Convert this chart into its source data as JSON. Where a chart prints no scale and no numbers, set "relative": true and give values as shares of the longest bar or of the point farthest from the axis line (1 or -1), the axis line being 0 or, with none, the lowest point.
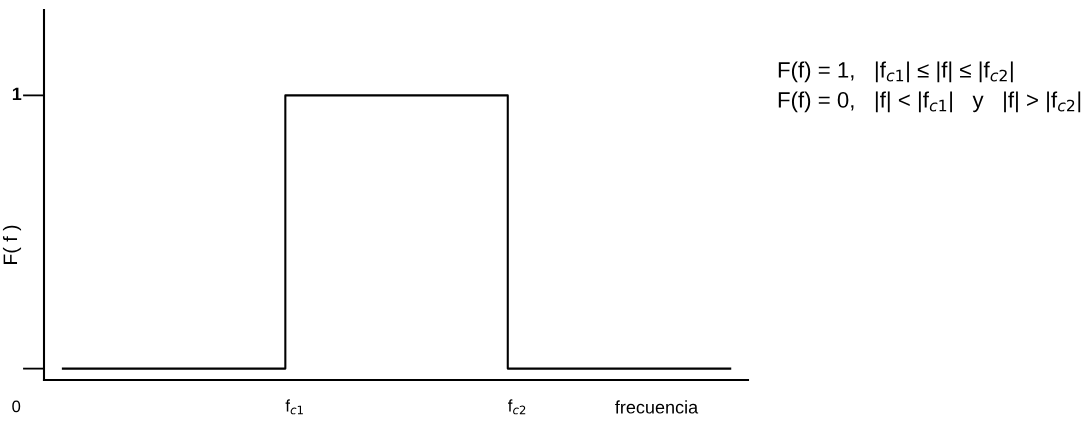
{
  "chart_data": {
    "type": "step",
    "categories": [
      null,
      "f$_{c1}$",
      "f$_{c2}$",
      null
    ],
    "values": [
      0.04,
      1,
      0.04,
      0.04
    ],
    "relative": true,
    "color": "#000000",
    "xlabel": "frecuencia",
    "ylabel": "F( f )",
    "annotations": [
      "1",
      "0",
      "F(f) = 1,   |f$_{c1}$| ≤ |f| ≤ |f$_{c2}$|",
      "F(f) = 0,   |f| < |f$_{c1}$|   y   |f| > |f$_{c2}$|"
    ]
  }
}
